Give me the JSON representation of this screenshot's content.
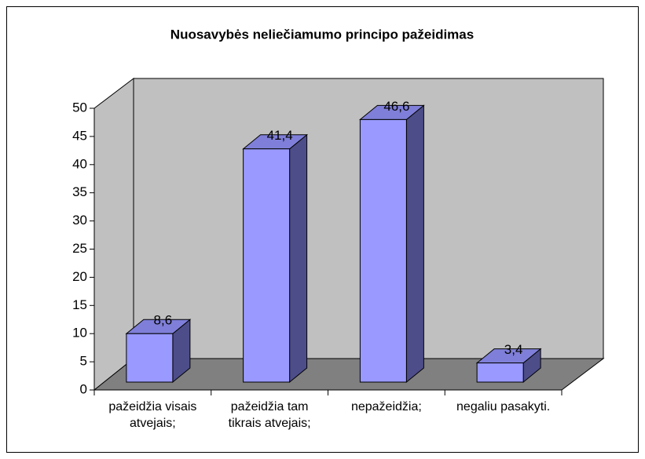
{
  "chart_data": {
    "type": "bar3d",
    "title": "Nuosavybės neliečiamumo principo pažeidimas",
    "categories": [
      "pažeidžia visais atvejais;",
      "pažeidžia tam tikrais atvejais;",
      "nepažeidžia;",
      "negaliu pasakyti."
    ],
    "values": [
      8.6,
      41.4,
      46.6,
      3.4
    ],
    "value_labels": [
      "8,6",
      "41,4",
      "46,6",
      "3,4"
    ],
    "color": "#9999ff",
    "ylim": [
      0,
      50
    ],
    "yticks": [
      0,
      5,
      10,
      15,
      20,
      25,
      30,
      35,
      40,
      45,
      50
    ],
    "grid": false
  }
}
